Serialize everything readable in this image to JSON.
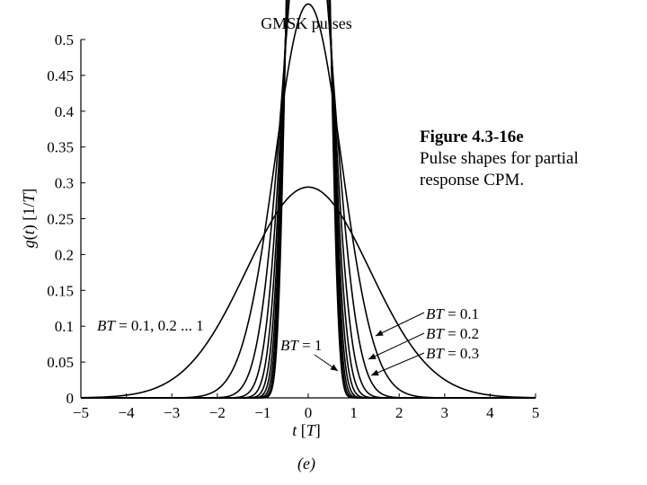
{
  "chart_data": {
    "type": "line",
    "title": "GMSK pulses",
    "xlabel": "t [T]",
    "ylabel": "g(t) [1/T]",
    "xlim": [
      -5,
      5
    ],
    "ylim": [
      0,
      0.5
    ],
    "xticks": [
      -5,
      -4,
      -3,
      -2,
      -1,
      0,
      1,
      2,
      3,
      4,
      5
    ],
    "xtick_labels": [
      "−5",
      "−4",
      "−3",
      "−2",
      "−1",
      "0",
      "1",
      "2",
      "3",
      "4",
      "5"
    ],
    "yticks": [
      0,
      0.05,
      0.1,
      0.15,
      0.2,
      0.25,
      0.3,
      0.35,
      0.4,
      0.45,
      0.5
    ],
    "ytick_labels": [
      "0",
      "0.05",
      "0.1",
      "0.15",
      "0.2",
      "0.25",
      "0.3",
      "0.35",
      "0.4",
      "0.45",
      "0.5"
    ],
    "grid": false,
    "subplot_label": "(e)",
    "series": [
      {
        "bt": 0.1,
        "x": [
          -5,
          -4,
          -3,
          -2,
          -1,
          0,
          1,
          2,
          3,
          4,
          5
        ],
        "y": [
          0.0,
          0.004,
          0.018,
          0.057,
          0.117,
          0.148,
          0.117,
          0.057,
          0.018,
          0.004,
          0.0
        ]
      },
      {
        "bt": 0.2,
        "x": [
          -2.5,
          -2,
          -1.5,
          -1,
          -0.5,
          0,
          0.5,
          1,
          1.5,
          2,
          2.5
        ],
        "y": [
          0.001,
          0.005,
          0.03,
          0.109,
          0.223,
          0.276,
          0.223,
          0.109,
          0.03,
          0.005,
          0.001
        ]
      },
      {
        "bt": 0.3,
        "x": [
          -2,
          -1.5,
          -1,
          -0.5,
          0,
          0.5,
          1,
          1.5,
          2
        ],
        "y": [
          0.0,
          0.003,
          0.058,
          0.254,
          0.372,
          0.254,
          0.058,
          0.003,
          0.0
        ]
      },
      {
        "bt": 0.4,
        "x": [
          -2,
          -1.5,
          -1,
          -0.5,
          0,
          0.5,
          1,
          1.5,
          2
        ],
        "y": [
          0.0,
          0.0,
          0.026,
          0.254,
          0.436,
          0.254,
          0.026,
          0.0,
          0.0
        ]
      },
      {
        "bt": 0.5,
        "x": [
          -2,
          -1.5,
          -1,
          -0.5,
          0,
          0.5,
          1,
          1.5,
          2
        ],
        "y": [
          0.0,
          0.0,
          0.011,
          0.251,
          0.469,
          0.251,
          0.011,
          0.0,
          0.0
        ]
      },
      {
        "bt": 0.6,
        "x": [
          -2,
          -1.5,
          -1,
          -0.5,
          0,
          0.5,
          1,
          1.5,
          2
        ],
        "y": [
          0.0,
          0.0,
          0.005,
          0.249,
          0.485,
          0.249,
          0.005,
          0.0,
          0.0
        ]
      },
      {
        "bt": 0.7,
        "x": [
          -2,
          -1.5,
          -1,
          -0.5,
          0,
          0.5,
          1,
          1.5,
          2
        ],
        "y": [
          0.0,
          0.0,
          0.002,
          0.248,
          0.493,
          0.248,
          0.002,
          0.0,
          0.0
        ]
      },
      {
        "bt": 0.8,
        "x": [
          -2,
          -1.5,
          -1,
          -0.5,
          0,
          0.5,
          1,
          1.5,
          2
        ],
        "y": [
          0.0,
          0.0,
          0.001,
          0.247,
          0.497,
          0.247,
          0.001,
          0.0,
          0.0
        ]
      },
      {
        "bt": 0.9,
        "x": [
          -2,
          -1.5,
          -1,
          -0.5,
          0,
          0.5,
          1,
          1.5,
          2
        ],
        "y": [
          0.0,
          0.0,
          0.0,
          0.247,
          0.498,
          0.247,
          0.0,
          0.0,
          0.0
        ]
      },
      {
        "bt": 1.0,
        "x": [
          -2,
          -1.5,
          -1,
          -0.5,
          0,
          0.5,
          1,
          1.5,
          2
        ],
        "y": [
          0.0,
          0.0,
          0.0,
          0.247,
          0.499,
          0.247,
          0.0,
          0.0,
          0.0
        ]
      }
    ],
    "annotations": [
      {
        "text": "BT = 0.1, 0.2 ... 1",
        "pointer": false
      },
      {
        "text": "BT = 1",
        "pointer": true
      },
      {
        "text": "BT = 0.1",
        "pointer": true
      },
      {
        "text": "BT = 0.2",
        "pointer": true
      },
      {
        "text": "BT = 0.3",
        "pointer": true
      }
    ]
  },
  "caption": {
    "title": "Figure 4.3-16e",
    "text": "Pulse shapes for partial response CPM."
  }
}
